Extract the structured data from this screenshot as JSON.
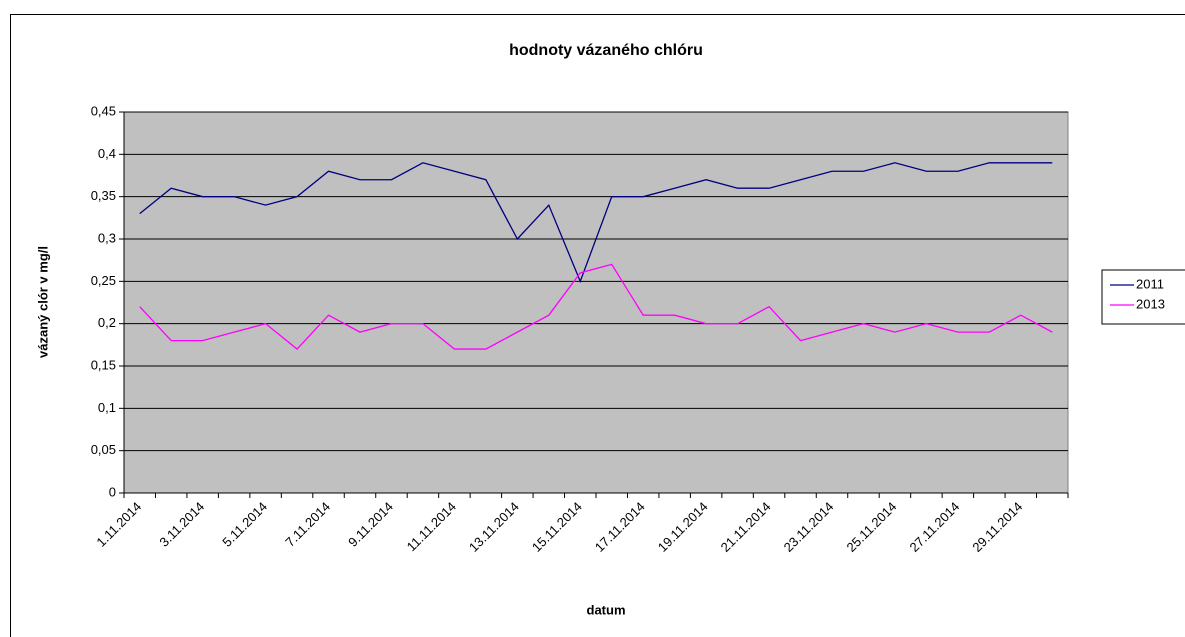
{
  "chart_data": {
    "type": "line",
    "title": "hodnoty vázaného chlóru",
    "x_label": "datum",
    "y_label": "vázaný clór v mg/l",
    "categories": [
      "1.11.2014",
      null,
      "3.11.2014",
      null,
      "5.11.2014",
      null,
      "7.11.2014",
      null,
      "9.11.2014",
      null,
      "11.11.2014",
      null,
      "13.11.2014",
      null,
      "15.11.2014",
      null,
      "17.11.2014",
      null,
      "19.11.2014",
      null,
      "21.11.2014",
      null,
      "23.11.2014",
      null,
      "25.11.2014",
      null,
      "27.11.2014",
      null,
      "29.11.2014",
      null
    ],
    "series": [
      {
        "name": "2011",
        "color": "#000080",
        "values": [
          0.33,
          0.36,
          0.35,
          0.35,
          0.34,
          0.35,
          0.38,
          0.37,
          0.37,
          0.39,
          0.38,
          0.37,
          0.3,
          0.34,
          0.25,
          0.35,
          0.35,
          0.36,
          0.37,
          0.36,
          0.36,
          0.37,
          0.38,
          0.38,
          0.39,
          0.38,
          0.38,
          0.39,
          0.39,
          0.39
        ]
      },
      {
        "name": "2013",
        "color": "#ff00ff",
        "values": [
          0.22,
          0.18,
          0.18,
          0.19,
          0.2,
          0.17,
          0.21,
          0.19,
          0.2,
          0.2,
          0.17,
          0.17,
          0.19,
          0.21,
          0.26,
          0.27,
          0.21,
          0.21,
          0.2,
          0.2,
          0.22,
          0.18,
          0.19,
          0.2,
          0.19,
          0.2,
          0.19,
          0.19,
          0.21,
          0.19
        ]
      }
    ],
    "ylim": [
      0,
      0.45
    ],
    "yticks": [
      0,
      {
        "value": 0.05,
        "label": "0,05"
      },
      {
        "value": 0.1,
        "label": "0,1"
      },
      {
        "value": 0.15,
        "label": "0,15"
      },
      {
        "value": 0.2,
        "label": "0,2"
      },
      {
        "value": 0.25,
        "label": "0,25"
      },
      {
        "value": 0.3,
        "label": "0,3"
      },
      {
        "value": 0.35,
        "label": "0,35"
      },
      {
        "value": 0.4,
        "label": "0,4"
      },
      {
        "value": 0.45,
        "label": "0,45"
      }
    ],
    "grid": true,
    "legend": "right"
  }
}
